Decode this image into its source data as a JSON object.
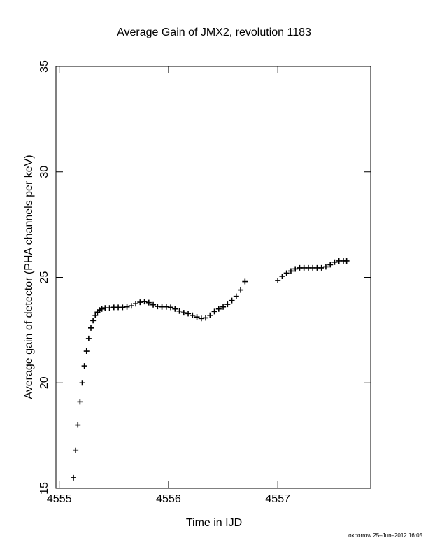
{
  "chart_data": {
    "type": "scatter",
    "title": "Average Gain of JMX2, revolution 1183",
    "x_label": "Time in IJD",
    "y_label": "Average gain of detector (PHA channels per keV)",
    "footer": "oxborrow 25–Jun–2012 16:05",
    "xlim": [
      4554.97,
      4557.85
    ],
    "ylim": [
      15,
      35
    ],
    "xticks": [
      4555,
      4556,
      4557
    ],
    "yticks": [
      15,
      20,
      25,
      30,
      35
    ],
    "marker": "plus",
    "series": [
      {
        "color": "#000000",
        "x": [
          4555.13,
          4555.15,
          4555.17,
          4555.19,
          4555.21,
          4555.23,
          4555.25,
          4555.27,
          4555.29,
          4555.31,
          4555.33,
          4555.35,
          4555.37,
          4555.39,
          4555.42,
          4555.46,
          4555.5,
          4555.54,
          4555.58,
          4555.62,
          4555.66,
          4555.7,
          4555.74,
          4555.78,
          4555.82,
          4555.86,
          4555.9,
          4555.94,
          4555.98,
          4556.02,
          4556.06,
          4556.1,
          4556.14,
          4556.18,
          4556.22,
          4556.26,
          4556.3,
          4556.34,
          4556.38,
          4556.42,
          4556.46,
          4556.5,
          4556.54,
          4556.58,
          4556.62,
          4556.66,
          4556.7,
          4557.0,
          4557.04,
          4557.08,
          4557.12,
          4557.16,
          4557.2,
          4557.24,
          4557.28,
          4557.32,
          4557.36,
          4557.4,
          4557.44,
          4557.48,
          4557.52,
          4557.56,
          4557.6,
          4557.63
        ],
        "values": [
          15.5,
          16.8,
          18.0,
          19.1,
          20.0,
          20.8,
          21.5,
          22.1,
          22.6,
          22.95,
          23.2,
          23.35,
          23.45,
          23.5,
          23.55,
          23.55,
          23.58,
          23.58,
          23.58,
          23.6,
          23.65,
          23.75,
          23.82,
          23.85,
          23.8,
          23.7,
          23.62,
          23.6,
          23.6,
          23.58,
          23.5,
          23.4,
          23.32,
          23.28,
          23.2,
          23.12,
          23.05,
          23.08,
          23.2,
          23.38,
          23.5,
          23.6,
          23.72,
          23.9,
          24.1,
          24.4,
          24.8,
          24.85,
          25.05,
          25.2,
          25.3,
          25.4,
          25.45,
          25.45,
          25.45,
          25.45,
          25.45,
          25.45,
          25.5,
          25.6,
          25.72,
          25.78,
          25.78,
          25.78
        ]
      }
    ]
  }
}
